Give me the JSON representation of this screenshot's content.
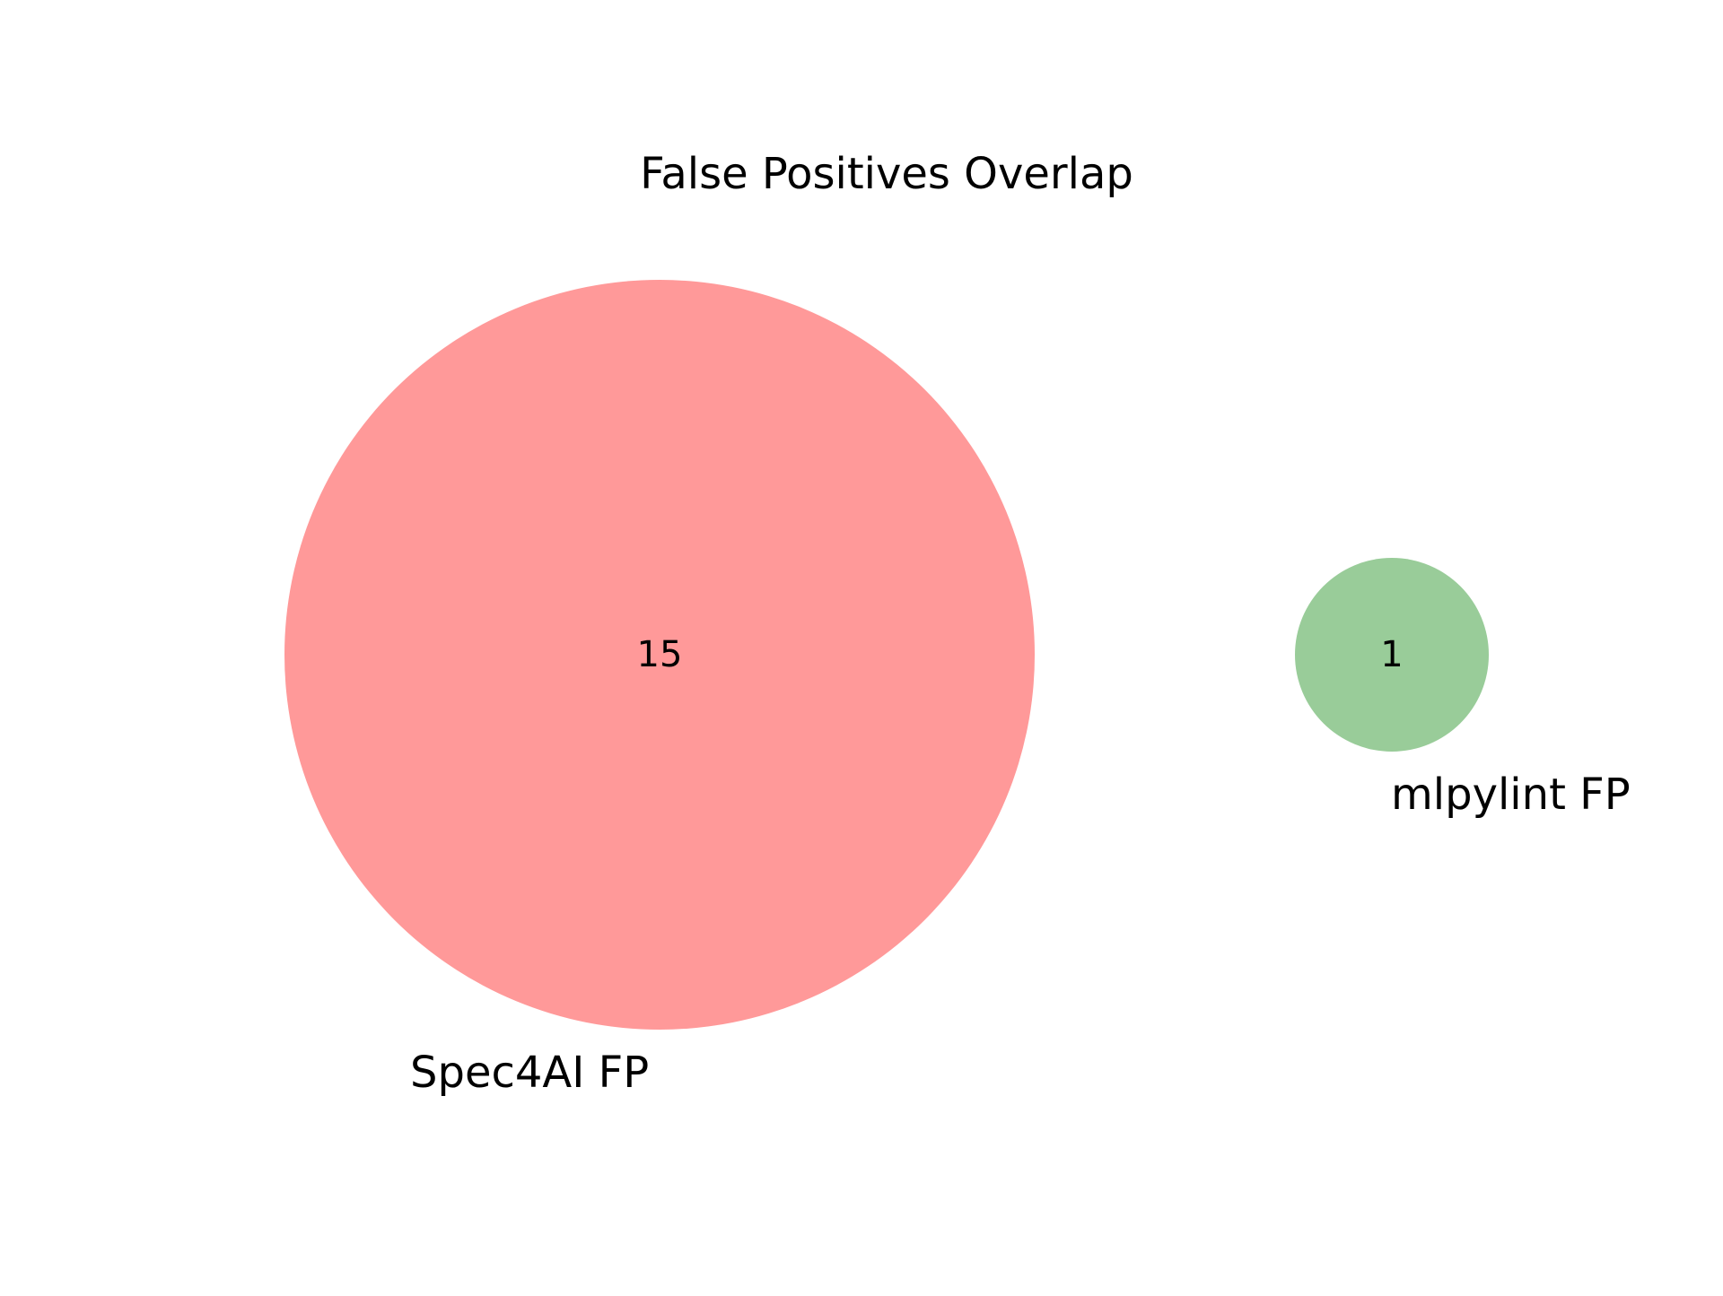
{
  "title": "False Positives Overlap",
  "sets": [
    {
      "name": "Spec4AI FP",
      "color": "#ff9999",
      "count": "15"
    },
    {
      "name": "mlpylint FP",
      "color": "#99cc99",
      "count": "1"
    }
  ],
  "chart_data": {
    "type": "venn",
    "title": "False Positives Overlap",
    "sets": [
      "Spec4AI FP",
      "mlpylint FP"
    ],
    "regions": [
      {
        "sets": [
          "Spec4AI FP"
        ],
        "value": 15
      },
      {
        "sets": [
          "mlpylint FP"
        ],
        "value": 1
      },
      {
        "sets": [
          "Spec4AI FP",
          "mlpylint FP"
        ],
        "value": 0
      }
    ]
  }
}
